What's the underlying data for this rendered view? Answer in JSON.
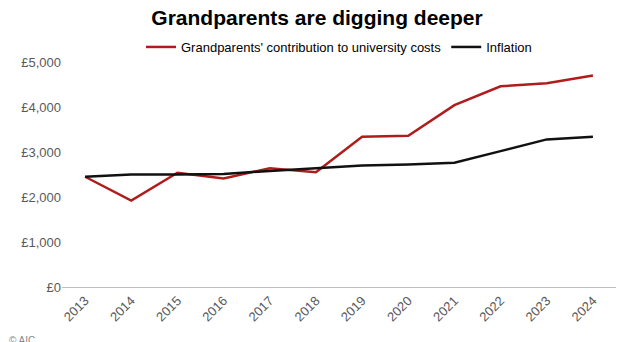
{
  "chart_data": {
    "type": "line",
    "title": "Grandparents are digging deeper",
    "categories": [
      "2013",
      "2014",
      "2015",
      "2016",
      "2017",
      "2018",
      "2019",
      "2020",
      "2021",
      "2022",
      "2023",
      "2024"
    ],
    "series": [
      {
        "name": "Grandparents' contribution to university costs",
        "color": "#b01c1c",
        "values": [
          2450,
          1920,
          2540,
          2410,
          2640,
          2550,
          3340,
          3360,
          4040,
          4460,
          4530,
          4700
        ]
      },
      {
        "name": "Inflation",
        "color": "#111111",
        "values": [
          2450,
          2500,
          2500,
          2510,
          2580,
          2640,
          2700,
          2720,
          2760,
          3020,
          3280,
          3340
        ]
      }
    ],
    "ylim": [
      0,
      5000
    ],
    "yticks": [
      {
        "value": 0,
        "label": "£0"
      },
      {
        "value": 1000,
        "label": "£1,000"
      },
      {
        "value": 2000,
        "label": "£2,000"
      },
      {
        "value": 3000,
        "label": "£3,000"
      },
      {
        "value": 4000,
        "label": "£4,000"
      },
      {
        "value": 5000,
        "label": "£5,000"
      }
    ],
    "grid": false,
    "legend": "top",
    "annotations": [
      "© AIC"
    ]
  }
}
